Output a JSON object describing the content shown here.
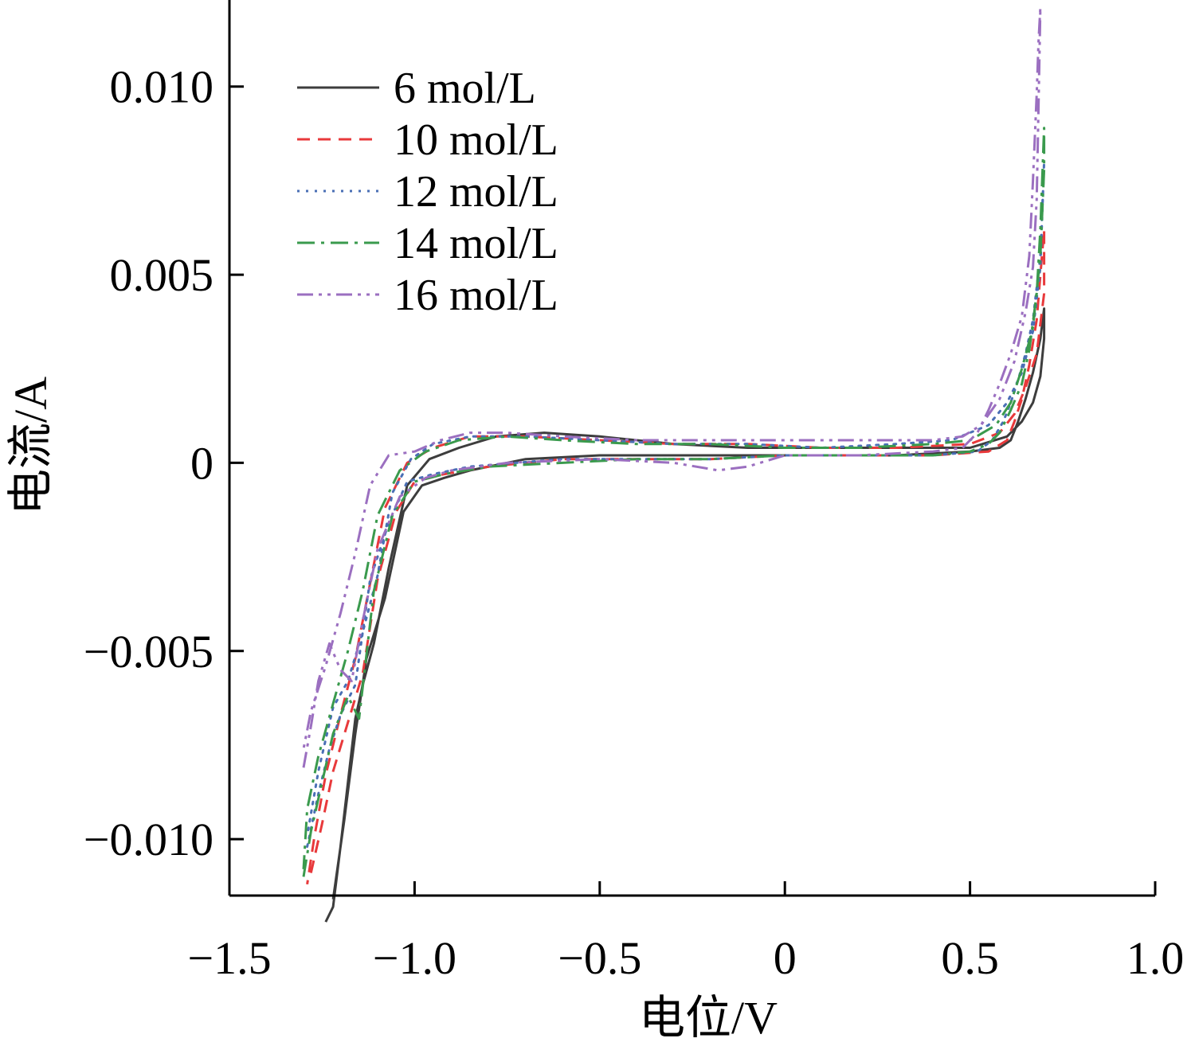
{
  "chart_data": {
    "type": "line",
    "title": "",
    "xlabel": "电位/V",
    "ylabel": "电流/A",
    "xlim": [
      -1.5,
      1.0
    ],
    "ylim": [
      -0.0115,
      0.0123
    ],
    "x_ticks": [
      -1.5,
      -1.0,
      -0.5,
      0,
      0.5,
      1.0
    ],
    "x_tick_labels": [
      "−1.5",
      "−1.0",
      "−0.5",
      "0",
      "0.5",
      "1.0"
    ],
    "y_ticks": [
      -0.01,
      -0.005,
      0,
      0.005,
      0.01
    ],
    "y_tick_labels": [
      "−0.010",
      "−0.005",
      "0",
      "0.005",
      "0.010"
    ],
    "grid": false,
    "legend_position": "top-left",
    "series": [
      {
        "name": "6 mol/L",
        "color": "#3d3d3d",
        "dash": "solid",
        "x": [
          -1.22,
          -1.19,
          -1.16,
          -1.13,
          -1.08,
          -1.03,
          -0.98,
          -0.92,
          -0.85,
          -0.7,
          -0.5,
          -0.3,
          -0.1,
          0.1,
          0.3,
          0.5,
          0.58,
          0.61,
          0.63,
          0.65,
          0.67,
          0.69,
          0.7,
          0.7,
          0.69,
          0.67,
          0.64,
          0.6,
          0.5,
          0.3,
          0.1,
          -0.1,
          -0.3,
          -0.5,
          -0.65,
          -0.78,
          -0.88,
          -0.96,
          -1.02,
          -1.07,
          -1.11,
          -1.14,
          -1.16,
          -1.18,
          -1.2,
          -1.22,
          -1.24
        ],
        "y": [
          -0.0116,
          -0.0095,
          -0.0072,
          -0.0052,
          -0.0036,
          -0.0013,
          -0.0006,
          -0.0004,
          -0.0002,
          0.0001,
          0.0002,
          0.0002,
          0.0002,
          0.0002,
          0.0002,
          0.0003,
          0.0004,
          0.0006,
          0.0011,
          0.0017,
          0.0024,
          0.0033,
          0.0041,
          0.0033,
          0.0023,
          0.0016,
          0.0011,
          0.0007,
          0.0004,
          0.0004,
          0.0004,
          0.0004,
          0.0005,
          0.0007,
          0.0008,
          0.0007,
          0.0004,
          0.0001,
          -0.0006,
          -0.0028,
          -0.0048,
          -0.0059,
          -0.0068,
          -0.0085,
          -0.0102,
          -0.0118,
          -0.0122
        ]
      },
      {
        "name": "10 mol/L",
        "color": "#e8393b",
        "dash": "dashed",
        "x": [
          -1.28,
          -1.25,
          -1.22,
          -1.18,
          -1.14,
          -1.1,
          -1.05,
          -1.0,
          -0.92,
          -0.8,
          -0.6,
          -0.4,
          -0.2,
          0,
          0.2,
          0.4,
          0.55,
          0.6,
          0.62,
          0.64,
          0.66,
          0.68,
          0.7,
          0.7,
          0.68,
          0.65,
          0.62,
          0.58,
          0.5,
          0.3,
          0.1,
          -0.1,
          -0.3,
          -0.5,
          -0.7,
          -0.85,
          -0.95,
          -1.02,
          -1.08,
          -1.12,
          -1.16,
          -1.2,
          -1.24,
          -1.27,
          -1.29
        ],
        "y": [
          -0.0109,
          -0.0096,
          -0.0082,
          -0.0069,
          -0.0056,
          -0.0031,
          -0.0013,
          -0.0005,
          -0.0003,
          -0.0001,
          0.0001,
          0.0001,
          0.0001,
          0.0002,
          0.0002,
          0.0002,
          0.0003,
          0.0006,
          0.0011,
          0.0017,
          0.0026,
          0.0038,
          0.0062,
          0.0045,
          0.0029,
          0.002,
          0.0013,
          0.0008,
          0.0005,
          0.0004,
          0.0004,
          0.0005,
          0.0005,
          0.0006,
          0.0007,
          0.0007,
          0.0004,
          0.0,
          -0.0012,
          -0.0032,
          -0.0052,
          -0.0067,
          -0.0083,
          -0.0099,
          -0.0112
        ]
      },
      {
        "name": "12 mol/L",
        "color": "#4a6fb5",
        "dash": "dotted",
        "x": [
          -1.29,
          -1.26,
          -1.23,
          -1.2,
          -1.16,
          -1.12,
          -1.07,
          -1.02,
          -0.95,
          -0.85,
          -0.6,
          -0.4,
          -0.2,
          0,
          0.2,
          0.4,
          0.52,
          0.56,
          0.59,
          0.61,
          0.63,
          0.65,
          0.67,
          0.69,
          0.7,
          0.69,
          0.67,
          0.64,
          0.6,
          0.55,
          0.45,
          0.3,
          0.1,
          -0.1,
          -0.3,
          -0.5,
          -0.7,
          -0.85,
          -0.95,
          -1.01,
          -1.06,
          -1.1,
          -1.14,
          -1.18,
          -1.22,
          -1.26,
          -1.29
        ],
        "y": [
          -0.0102,
          -0.0088,
          -0.0076,
          -0.0067,
          -0.0059,
          -0.0031,
          -0.0016,
          -0.0005,
          -0.0003,
          -0.0001,
          0.0001,
          0.0001,
          0.0001,
          0.0002,
          0.0002,
          0.0002,
          0.0003,
          0.0006,
          0.0011,
          0.0016,
          0.0022,
          0.0029,
          0.0038,
          0.0055,
          0.008,
          0.0052,
          0.0035,
          0.0024,
          0.0016,
          0.001,
          0.0006,
          0.0005,
          0.0004,
          0.0005,
          0.0005,
          0.0006,
          0.0007,
          0.0007,
          0.0005,
          0.0001,
          -0.0008,
          -0.003,
          -0.0045,
          -0.0058,
          -0.0065,
          -0.0082,
          -0.0099
        ]
      },
      {
        "name": "14 mol/L",
        "color": "#3a9a4d",
        "dash": "dashdot",
        "x": [
          -1.3,
          -1.28,
          -1.25,
          -1.22,
          -1.18,
          -1.15,
          -1.11,
          -1.06,
          -1.0,
          -0.92,
          -0.8,
          -0.6,
          -0.4,
          -0.2,
          0,
          0.2,
          0.4,
          0.5,
          0.55,
          0.58,
          0.61,
          0.64,
          0.66,
          0.68,
          0.69,
          0.7,
          0.7,
          0.69,
          0.67,
          0.64,
          0.61,
          0.57,
          0.5,
          0.4,
          0.2,
          0.0,
          -0.2,
          -0.4,
          -0.6,
          -0.75,
          -0.88,
          -0.97,
          -1.04,
          -1.1,
          -1.14,
          -1.18,
          -1.22,
          -1.26,
          -1.29,
          -1.3
        ],
        "y": [
          -0.011,
          -0.0098,
          -0.0085,
          -0.0072,
          -0.0062,
          -0.0068,
          -0.0034,
          -0.0014,
          -0.0005,
          -0.0003,
          -0.0001,
          0.0,
          0.0001,
          0.0001,
          0.0002,
          0.0002,
          0.0002,
          0.0003,
          0.0005,
          0.0008,
          0.0014,
          0.0021,
          0.003,
          0.0045,
          0.0062,
          0.0089,
          0.0078,
          0.0055,
          0.0036,
          0.0025,
          0.0016,
          0.001,
          0.0006,
          0.0005,
          0.0004,
          0.0004,
          0.0005,
          0.0005,
          0.0006,
          0.0007,
          0.0006,
          0.0003,
          -0.0002,
          -0.0014,
          -0.0034,
          -0.005,
          -0.0064,
          -0.0078,
          -0.0092,
          -0.0108
        ]
      },
      {
        "name": "16 mol/L",
        "color": "#9b6fc0",
        "dash": "dashdotdot",
        "x": [
          -1.3,
          -1.28,
          -1.26,
          -1.23,
          -1.2,
          -1.17,
          -1.14,
          -1.1,
          -1.04,
          -0.97,
          -0.9,
          -0.75,
          -0.5,
          -0.3,
          -0.18,
          -0.1,
          0.0,
          0.2,
          0.4,
          0.48,
          0.52,
          0.55,
          0.58,
          0.61,
          0.64,
          0.66,
          0.67,
          0.68,
          0.685,
          0.69,
          0.685,
          0.68,
          0.67,
          0.65,
          0.62,
          0.58,
          0.53,
          0.48,
          0.4,
          0.2,
          0.0,
          -0.2,
          -0.4,
          -0.6,
          -0.75,
          -0.85,
          -0.93,
          -1.0,
          -1.07,
          -1.12,
          -1.16,
          -1.2,
          -1.24,
          -1.28,
          -1.3
        ],
        "y": [
          -0.0081,
          -0.007,
          -0.0058,
          -0.0048,
          -0.0055,
          -0.0058,
          -0.0042,
          -0.0023,
          -0.0009,
          -0.0004,
          -0.0002,
          0.0,
          0.0001,
          0.0,
          -0.0002,
          -0.0001,
          0.0002,
          0.0002,
          0.0003,
          0.0004,
          0.0008,
          0.0014,
          0.0021,
          0.0029,
          0.0039,
          0.0055,
          0.0075,
          0.0098,
          0.0112,
          0.0121,
          0.0095,
          0.007,
          0.0052,
          0.004,
          0.0027,
          0.0017,
          0.001,
          0.0007,
          0.0006,
          0.0006,
          0.0006,
          0.0006,
          0.0006,
          0.0007,
          0.0008,
          0.0008,
          0.0006,
          0.0003,
          0.0002,
          -0.0006,
          -0.0024,
          -0.004,
          -0.0054,
          -0.0066,
          -0.0076
        ]
      }
    ]
  }
}
